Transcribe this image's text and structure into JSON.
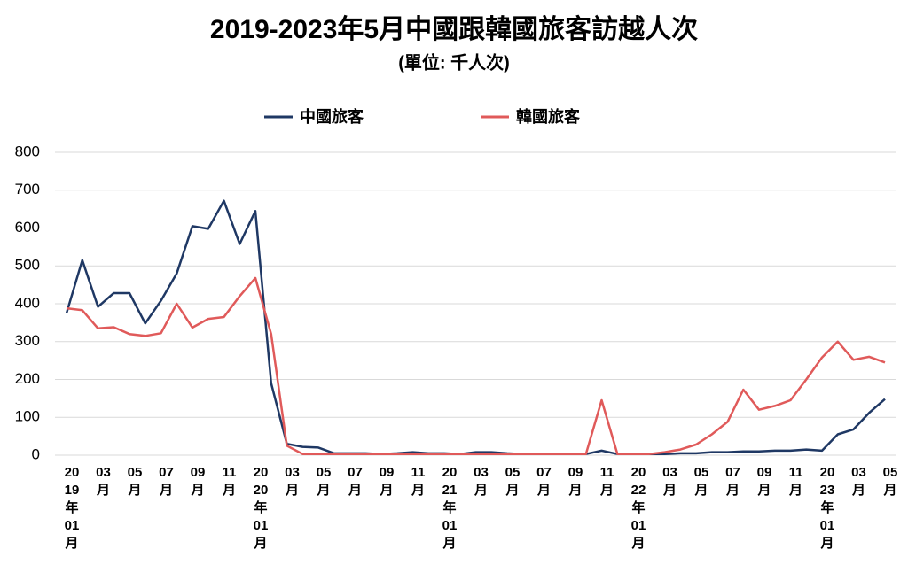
{
  "chart_data": {
    "type": "line",
    "title": "2019-2023年5月中國跟韓國旅客訪越人次",
    "subtitle": "(單位: 千人次)",
    "categories": [
      "2019年01月",
      null,
      "03月",
      null,
      "05月",
      null,
      "07月",
      null,
      "09月",
      null,
      "11月",
      null,
      "2020年01月",
      null,
      "03月",
      null,
      "05月",
      null,
      "07月",
      null,
      "09月",
      null,
      "11月",
      null,
      "2021年01月",
      null,
      "03月",
      null,
      "05月",
      null,
      "07月",
      null,
      "09月",
      null,
      "11月",
      null,
      "2022年01月",
      null,
      "03月",
      null,
      "05月",
      null,
      "07月",
      null,
      "09月",
      null,
      "11月",
      null,
      "2023年01月",
      null,
      "03月",
      null,
      "05月"
    ],
    "series": [
      {
        "name": "中國旅客",
        "color": "#1f3864",
        "values": [
          375,
          515,
          392,
          428,
          428,
          348,
          408,
          480,
          605,
          598,
          672,
          558,
          645,
          190,
          30,
          22,
          20,
          5,
          5,
          5,
          3,
          5,
          8,
          5,
          5,
          3,
          8,
          8,
          5,
          3,
          3,
          3,
          3,
          3,
          12,
          3,
          3,
          3,
          3,
          5,
          5,
          8,
          8,
          10,
          10,
          12,
          12,
          15,
          12,
          55,
          68,
          112,
          148
        ]
      },
      {
        "name": "韓國旅客",
        "color": "#e05a5a",
        "values": [
          388,
          383,
          335,
          338,
          320,
          315,
          322,
          400,
          337,
          360,
          365,
          420,
          468,
          320,
          25,
          3,
          3,
          3,
          3,
          3,
          3,
          3,
          3,
          3,
          3,
          3,
          3,
          3,
          3,
          3,
          3,
          3,
          3,
          3,
          145,
          3,
          3,
          3,
          8,
          15,
          28,
          55,
          88,
          173,
          120,
          130,
          145,
          200,
          258,
          300,
          252,
          260,
          245
        ]
      }
    ],
    "ylim": [
      0,
      800
    ],
    "yticks": [
      0,
      100,
      200,
      300,
      400,
      500,
      600,
      700,
      800
    ],
    "grid": true
  }
}
